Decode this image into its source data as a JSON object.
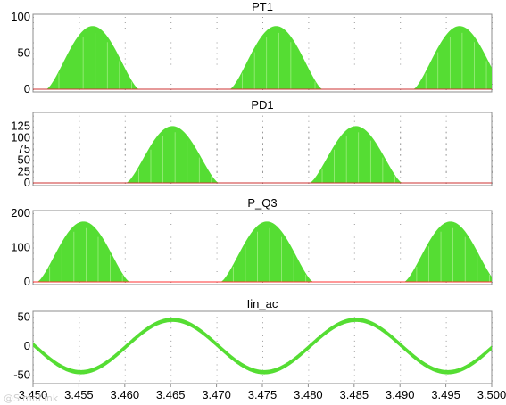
{
  "chart_data": [
    {
      "type": "area",
      "title": "PT1",
      "xlim": [
        3.45,
        3.5
      ],
      "ylim": [
        0,
        100
      ],
      "yticks": [
        0,
        50,
        100
      ],
      "grid": true,
      "series": [
        {
          "color": "#55dd33",
          "peak": 87,
          "segments": [
            [
              3.4515,
              3.4615
            ],
            [
              3.4715,
              3.4815
            ],
            [
              3.4915,
              3.5
            ]
          ]
        },
        {
          "color": "#cc3333",
          "constant": 0
        }
      ]
    },
    {
      "type": "area",
      "title": "PD1",
      "xlim": [
        3.45,
        3.5
      ],
      "ylim": [
        0,
        150
      ],
      "yticks": [
        0,
        25,
        50,
        75,
        100,
        125
      ],
      "grid": true,
      "series": [
        {
          "color": "#55dd33",
          "peak": 125,
          "segments": [
            [
              3.4602,
              3.4703
            ],
            [
              3.4802,
              3.4903
            ]
          ]
        },
        {
          "color": "#cc3333",
          "constant": 0
        }
      ]
    },
    {
      "type": "area",
      "title": "P_Q3",
      "xlim": [
        3.45,
        3.5
      ],
      "ylim": [
        0,
        200
      ],
      "yticks": [
        0,
        100,
        200
      ],
      "grid": true,
      "series": [
        {
          "color": "#55dd33",
          "peak": 175,
          "segments": [
            [
              3.4505,
              3.4605
            ],
            [
              3.4705,
              3.4805
            ],
            [
              3.4905,
              3.5
            ]
          ]
        },
        {
          "color": "#ff3333",
          "constant": 0
        }
      ]
    },
    {
      "type": "line",
      "title": "Iin_ac",
      "xlim": [
        3.45,
        3.5
      ],
      "ylim": [
        -60,
        55
      ],
      "yticks": [
        -50,
        0,
        50
      ],
      "xticks": [
        "3.450",
        "3.455",
        "3.460",
        "3.465",
        "3.470",
        "3.475",
        "3.480",
        "3.485",
        "3.490",
        "3.495",
        "3.500"
      ],
      "grid": true,
      "series": [
        {
          "color": "#55dd33",
          "amplitude": 45,
          "frequency_hz": 50,
          "ripple": 3,
          "samples": {
            "x": [
              3.45,
              3.455,
              3.46,
              3.465,
              3.47,
              3.475,
              3.48,
              3.485,
              3.49,
              3.495,
              3.5
            ],
            "y": [
              -5,
              -45,
              -5,
              45,
              5,
              -45,
              -5,
              45,
              5,
              -45,
              0
            ]
          }
        }
      ]
    }
  ],
  "watermark": "@SimuLink"
}
